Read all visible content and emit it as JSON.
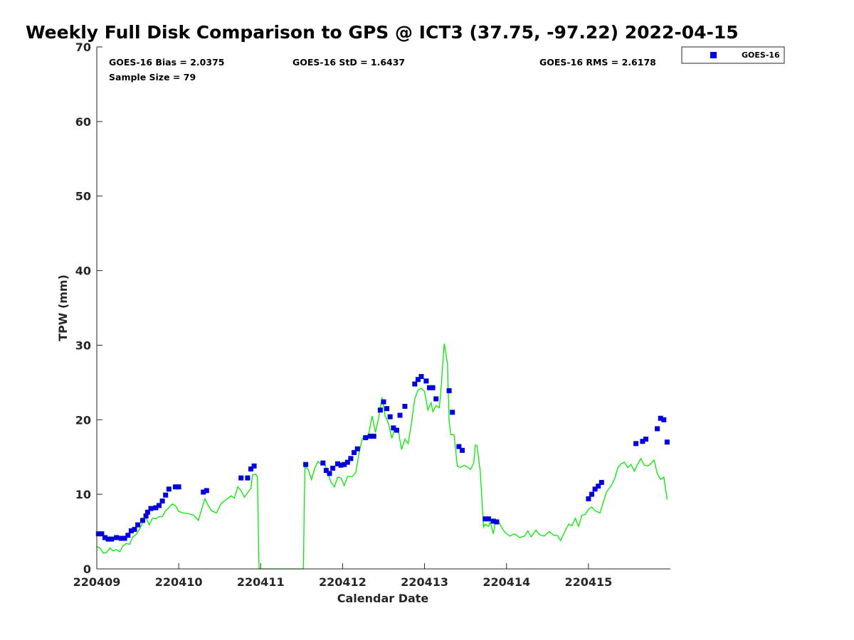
{
  "chart_data": {
    "type": "scatter",
    "title": "Weekly Full Disk Comparison to GPS @ ICT3 (37.75, -97.22) 2022-04-15",
    "xlabel": "Calendar Date",
    "ylabel": "TPW (mm)",
    "xlim": [
      0,
      7
    ],
    "ylim": [
      0,
      70
    ],
    "x_ticks": [
      {
        "value": 0,
        "label": "220409"
      },
      {
        "value": 1,
        "label": "220410"
      },
      {
        "value": 2,
        "label": "220411"
      },
      {
        "value": 3,
        "label": "220412"
      },
      {
        "value": 4,
        "label": "220413"
      },
      {
        "value": 5,
        "label": "220414"
      },
      {
        "value": 6,
        "label": "220415"
      }
    ],
    "y_ticks": [
      0,
      10,
      20,
      30,
      40,
      50,
      60,
      70
    ],
    "grid": false,
    "legend_position": "outside-top-right",
    "stats": {
      "bias": "GOES-16 Bias = 2.0375",
      "std": "GOES-16 StD = 1.6437",
      "rms": "GOES-16 RMS = 2.6178",
      "sample": "Sample Size = 79"
    },
    "series": [
      {
        "name": "GOES-16",
        "kind": "points",
        "color": "#0000dd",
        "points": [
          [
            0.02,
            4.7
          ],
          [
            0.06,
            4.7
          ],
          [
            0.1,
            4.2
          ],
          [
            0.14,
            4.0
          ],
          [
            0.18,
            4.0
          ],
          [
            0.24,
            4.2
          ],
          [
            0.3,
            4.1
          ],
          [
            0.34,
            4.1
          ],
          [
            0.38,
            4.5
          ],
          [
            0.42,
            5.1
          ],
          [
            0.46,
            5.3
          ],
          [
            0.5,
            5.9
          ],
          [
            0.56,
            6.5
          ],
          [
            0.6,
            7.1
          ],
          [
            0.62,
            7.6
          ],
          [
            0.66,
            8.1
          ],
          [
            0.72,
            8.2
          ],
          [
            0.76,
            8.5
          ],
          [
            0.8,
            9.1
          ],
          [
            0.84,
            9.9
          ],
          [
            0.88,
            10.7
          ],
          [
            0.96,
            11.0
          ],
          [
            1.0,
            11.0
          ],
          [
            1.3,
            10.3
          ],
          [
            1.34,
            10.5
          ],
          [
            1.76,
            12.2
          ],
          [
            1.84,
            12.2
          ],
          [
            1.88,
            13.4
          ],
          [
            1.92,
            13.8
          ],
          [
            2.55,
            14.0
          ],
          [
            2.76,
            14.2
          ],
          [
            2.8,
            13.2
          ],
          [
            2.84,
            12.8
          ],
          [
            2.88,
            13.5
          ],
          [
            2.94,
            14.1
          ],
          [
            2.98,
            13.9
          ],
          [
            3.02,
            14.0
          ],
          [
            3.06,
            14.3
          ],
          [
            3.1,
            14.8
          ],
          [
            3.14,
            15.6
          ],
          [
            3.18,
            16.1
          ],
          [
            3.28,
            17.6
          ],
          [
            3.34,
            17.8
          ],
          [
            3.38,
            17.8
          ],
          [
            3.46,
            21.3
          ],
          [
            3.5,
            22.4
          ],
          [
            3.54,
            21.5
          ],
          [
            3.58,
            20.4
          ],
          [
            3.62,
            18.9
          ],
          [
            3.66,
            18.6
          ],
          [
            3.7,
            20.6
          ],
          [
            3.76,
            21.8
          ],
          [
            3.88,
            24.8
          ],
          [
            3.92,
            25.4
          ],
          [
            3.96,
            25.8
          ],
          [
            4.02,
            25.2
          ],
          [
            4.06,
            24.3
          ],
          [
            4.1,
            24.3
          ],
          [
            4.14,
            22.8
          ],
          [
            4.3,
            23.9
          ],
          [
            4.34,
            21.0
          ],
          [
            4.42,
            16.4
          ],
          [
            4.46,
            15.9
          ],
          [
            4.74,
            6.7
          ],
          [
            4.78,
            6.7
          ],
          [
            4.84,
            6.4
          ],
          [
            4.88,
            6.3
          ],
          [
            6.0,
            9.4
          ],
          [
            6.04,
            10.0
          ],
          [
            6.08,
            10.7
          ],
          [
            6.12,
            11.1
          ],
          [
            6.16,
            11.6
          ],
          [
            6.58,
            16.8
          ],
          [
            6.66,
            17.1
          ],
          [
            6.7,
            17.4
          ],
          [
            6.84,
            18.8
          ],
          [
            6.88,
            20.2
          ],
          [
            6.92,
            20.0
          ],
          [
            6.96,
            17.0
          ]
        ]
      },
      {
        "kind": "line",
        "color": "#00ee00",
        "points": [
          [
            0.0,
            3.0
          ],
          [
            0.04,
            2.8
          ],
          [
            0.08,
            2.1
          ],
          [
            0.12,
            2.2
          ],
          [
            0.16,
            2.8
          ],
          [
            0.2,
            2.4
          ],
          [
            0.24,
            2.6
          ],
          [
            0.28,
            2.3
          ],
          [
            0.32,
            3.1
          ],
          [
            0.36,
            3.4
          ],
          [
            0.4,
            3.3
          ],
          [
            0.44,
            4.3
          ],
          [
            0.48,
            4.6
          ],
          [
            0.52,
            5.3
          ],
          [
            0.56,
            6.2
          ],
          [
            0.6,
            6.9
          ],
          [
            0.64,
            5.9
          ],
          [
            0.68,
            6.8
          ],
          [
            0.72,
            6.7
          ],
          [
            0.76,
            7.0
          ],
          [
            0.8,
            7.0
          ],
          [
            0.84,
            7.8
          ],
          [
            0.88,
            8.2
          ],
          [
            0.92,
            8.7
          ],
          [
            0.96,
            8.5
          ],
          [
            1.0,
            7.7
          ],
          [
            1.06,
            7.5
          ],
          [
            1.12,
            7.4
          ],
          [
            1.18,
            7.2
          ],
          [
            1.24,
            6.5
          ],
          [
            1.28,
            8.0
          ],
          [
            1.32,
            9.4
          ],
          [
            1.36,
            8.5
          ],
          [
            1.4,
            7.8
          ],
          [
            1.46,
            7.5
          ],
          [
            1.52,
            8.8
          ],
          [
            1.58,
            9.3
          ],
          [
            1.64,
            9.8
          ],
          [
            1.68,
            9.5
          ],
          [
            1.72,
            11.0
          ],
          [
            1.76,
            10.5
          ],
          [
            1.8,
            9.6
          ],
          [
            1.84,
            10.2
          ],
          [
            1.88,
            10.8
          ],
          [
            1.9,
            12.6
          ],
          [
            1.94,
            12.7
          ],
          [
            1.96,
            12.3
          ],
          [
            1.98,
            0.0
          ],
          [
            2.52,
            0.0
          ],
          [
            2.54,
            13.8
          ],
          [
            2.58,
            13.3
          ],
          [
            2.62,
            12.0
          ],
          [
            2.66,
            13.5
          ],
          [
            2.7,
            14.4
          ],
          [
            2.74,
            14.0
          ],
          [
            2.78,
            14.2
          ],
          [
            2.82,
            12.8
          ],
          [
            2.86,
            11.6
          ],
          [
            2.9,
            11.0
          ],
          [
            2.94,
            12.3
          ],
          [
            2.98,
            12.2
          ],
          [
            3.02,
            11.2
          ],
          [
            3.06,
            12.4
          ],
          [
            3.12,
            12.4
          ],
          [
            3.16,
            12.9
          ],
          [
            3.2,
            15.5
          ],
          [
            3.24,
            17.5
          ],
          [
            3.28,
            17.6
          ],
          [
            3.32,
            18.2
          ],
          [
            3.36,
            20.5
          ],
          [
            3.4,
            18.3
          ],
          [
            3.44,
            20.3
          ],
          [
            3.48,
            23.0
          ],
          [
            3.52,
            20.5
          ],
          [
            3.56,
            19.5
          ],
          [
            3.6,
            17.5
          ],
          [
            3.64,
            19.0
          ],
          [
            3.68,
            18.5
          ],
          [
            3.72,
            16.0
          ],
          [
            3.76,
            17.4
          ],
          [
            3.8,
            16.8
          ],
          [
            3.84,
            19.5
          ],
          [
            3.88,
            22.8
          ],
          [
            3.92,
            24.0
          ],
          [
            3.96,
            24.2
          ],
          [
            4.0,
            23.8
          ],
          [
            4.04,
            21.3
          ],
          [
            4.08,
            22.3
          ],
          [
            4.1,
            21.1
          ],
          [
            4.14,
            21.9
          ],
          [
            4.18,
            21.6
          ],
          [
            4.2,
            24.0
          ],
          [
            4.24,
            30.2
          ],
          [
            4.28,
            27.5
          ],
          [
            4.3,
            19.8
          ],
          [
            4.32,
            18.0
          ],
          [
            4.36,
            18.0
          ],
          [
            4.4,
            13.8
          ],
          [
            4.44,
            13.6
          ],
          [
            4.48,
            13.9
          ],
          [
            4.52,
            13.7
          ],
          [
            4.56,
            13.3
          ],
          [
            4.6,
            14.2
          ],
          [
            4.62,
            16.6
          ],
          [
            4.64,
            16.5
          ],
          [
            4.68,
            13.0
          ],
          [
            4.72,
            5.6
          ],
          [
            4.74,
            6.0
          ],
          [
            4.78,
            5.7
          ],
          [
            4.8,
            6.3
          ],
          [
            4.84,
            4.7
          ],
          [
            4.86,
            6.2
          ],
          [
            4.9,
            6.4
          ],
          [
            4.94,
            5.6
          ],
          [
            4.98,
            4.9
          ],
          [
            5.04,
            4.4
          ],
          [
            5.1,
            4.7
          ],
          [
            5.16,
            4.2
          ],
          [
            5.22,
            4.4
          ],
          [
            5.26,
            5.1
          ],
          [
            5.3,
            4.3
          ],
          [
            5.36,
            5.2
          ],
          [
            5.4,
            4.6
          ],
          [
            5.46,
            4.4
          ],
          [
            5.52,
            5.0
          ],
          [
            5.58,
            4.5
          ],
          [
            5.62,
            4.5
          ],
          [
            5.66,
            3.8
          ],
          [
            5.72,
            5.2
          ],
          [
            5.76,
            6.0
          ],
          [
            5.8,
            5.8
          ],
          [
            5.84,
            6.8
          ],
          [
            5.88,
            5.7
          ],
          [
            5.92,
            7.2
          ],
          [
            5.96,
            7.3
          ],
          [
            6.0,
            8.0
          ],
          [
            6.04,
            8.3
          ],
          [
            6.08,
            7.8
          ],
          [
            6.14,
            7.5
          ],
          [
            6.18,
            8.9
          ],
          [
            6.22,
            10.3
          ],
          [
            6.28,
            11.2
          ],
          [
            6.32,
            12.1
          ],
          [
            6.36,
            13.6
          ],
          [
            6.4,
            14.1
          ],
          [
            6.44,
            14.3
          ],
          [
            6.48,
            13.6
          ],
          [
            6.52,
            14.0
          ],
          [
            6.56,
            13.1
          ],
          [
            6.6,
            14.0
          ],
          [
            6.64,
            14.8
          ],
          [
            6.68,
            13.9
          ],
          [
            6.72,
            13.8
          ],
          [
            6.76,
            14.1
          ],
          [
            6.8,
            14.6
          ],
          [
            6.84,
            12.8
          ],
          [
            6.88,
            12.0
          ],
          [
            6.92,
            12.3
          ],
          [
            6.96,
            9.3
          ]
        ]
      }
    ]
  }
}
